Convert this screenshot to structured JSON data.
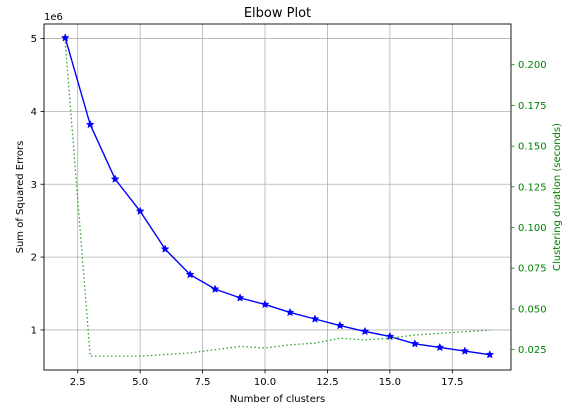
{
  "chart_data": {
    "type": "line",
    "title": "Elbow Plot",
    "xlabel": "Number of clusters",
    "ylabel_left": "Sum of Squared Errors",
    "ylabel_right": "Clustering duration (seconds)",
    "y_left_exponent_label": "1e6",
    "xlim": [
      1.15,
      19.85
    ],
    "ylim_left": [
      0.45,
      5.2
    ],
    "ylim_right": [
      0.0125,
      0.225
    ],
    "x_ticks": [
      {
        "value": 2.5,
        "label": "2.5"
      },
      {
        "value": 5.0,
        "label": "5.0"
      },
      {
        "value": 7.5,
        "label": "7.5"
      },
      {
        "value": 10.0,
        "label": "10.0"
      },
      {
        "value": 12.5,
        "label": "12.5"
      },
      {
        "value": 15.0,
        "label": "15.0"
      },
      {
        "value": 17.5,
        "label": "17.5"
      }
    ],
    "y_left_ticks": [
      {
        "value": 1,
        "label": "1"
      },
      {
        "value": 2,
        "label": "2"
      },
      {
        "value": 3,
        "label": "3"
      },
      {
        "value": 4,
        "label": "4"
      },
      {
        "value": 5,
        "label": "5"
      }
    ],
    "y_right_ticks": [
      {
        "value": 0.025,
        "label": "0.025"
      },
      {
        "value": 0.05,
        "label": "0.050"
      },
      {
        "value": 0.075,
        "label": "0.075"
      },
      {
        "value": 0.1,
        "label": "0.100"
      },
      {
        "value": 0.125,
        "label": "0.125"
      },
      {
        "value": 0.15,
        "label": "0.150"
      },
      {
        "value": 0.175,
        "label": "0.175"
      },
      {
        "value": 0.2,
        "label": "0.200"
      }
    ],
    "grid": true,
    "x": [
      2,
      3,
      4,
      5,
      6,
      7,
      8,
      9,
      10,
      11,
      12,
      13,
      14,
      15,
      16,
      17,
      18,
      19
    ],
    "series": [
      {
        "axis": "left",
        "style": "solid",
        "marker": "star",
        "color": "#0000ff",
        "values": [
          5.01,
          3.82,
          3.07,
          2.63,
          2.11,
          1.76,
          1.56,
          1.44,
          1.35,
          1.24,
          1.15,
          1.06,
          0.98,
          0.91,
          0.81,
          0.76,
          0.71,
          0.66
        ]
      },
      {
        "axis": "right",
        "style": "dotted",
        "marker": "none",
        "color": "#2ca02c",
        "values": [
          0.214,
          0.021,
          0.021,
          0.021,
          0.022,
          0.023,
          0.025,
          0.027,
          0.026,
          0.028,
          0.029,
          0.032,
          0.031,
          0.032,
          0.034,
          0.035,
          0.036,
          0.037
        ]
      }
    ],
    "colors": {
      "right_axis": "#008000",
      "grid": "#b0b0b0",
      "axes": "#000000"
    }
  }
}
